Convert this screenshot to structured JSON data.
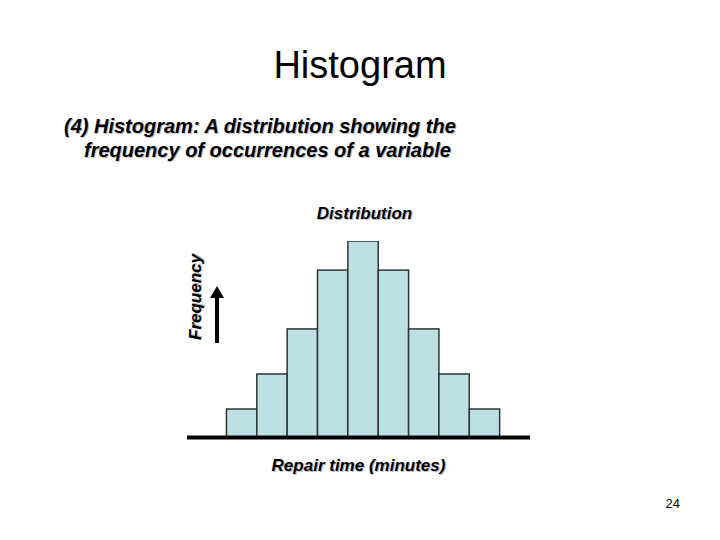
{
  "slide": {
    "title": "Histogram",
    "text": [
      "(4) Histogram: A distribution showing the",
      "frequency of occurrences of a variable"
    ],
    "page": "24"
  },
  "chart_data": {
    "type": "histogram",
    "title": "Distribution",
    "x_label": "Repair time (minutes)",
    "y_label": "Frequency",
    "bins": [
      0,
      1,
      2,
      3,
      4,
      5,
      6,
      7,
      8,
      9
    ],
    "values": [
      1,
      2.25,
      3.86,
      5.96,
      7,
      5.96,
      3.86,
      2.25,
      1
    ],
    "color": "#bde0e4",
    "xlim": [
      -1.3,
      10
    ],
    "ylim": [
      0,
      7
    ],
    "grid": false,
    "tick_labels": false
  }
}
